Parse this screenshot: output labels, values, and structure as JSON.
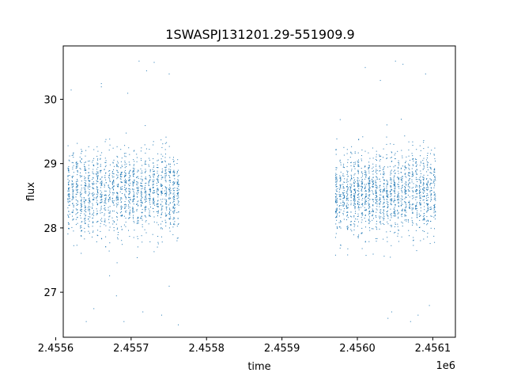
{
  "chart_data": {
    "type": "scatter",
    "title": "1SWASPJ131201.29-551909.9",
    "xlabel": "time",
    "ylabel": "flux",
    "x_offset_label": "1e6",
    "xlim": [
      2.45561,
      2.45613
    ],
    "ylim": [
      26.3,
      30.83
    ],
    "xticks": [
      2.4556,
      2.4557,
      2.4558,
      2.4559,
      2.456,
      2.4561
    ],
    "xtick_labels": [
      "2.4556",
      "2.4557",
      "2.4558",
      "2.4559",
      "2.4560",
      "2.4561"
    ],
    "yticks": [
      27,
      28,
      29,
      30
    ],
    "ytick_labels": [
      "27",
      "28",
      "29",
      "30"
    ],
    "grid": false,
    "point_color": "#1f77b4",
    "series": [
      {
        "segments": [
          {
            "x_start": 2.455615,
            "x_end": 2.455765,
            "center": 28.55,
            "spread": 0.32,
            "n": 1700
          },
          {
            "x_start": 2.45597,
            "x_end": 2.456105,
            "center": 28.55,
            "spread": 0.32,
            "n": 1700
          }
        ],
        "outliers": [
          [
            2.45562,
            30.15
          ],
          [
            2.45564,
            26.55
          ],
          [
            2.45566,
            30.2
          ],
          [
            2.45568,
            26.95
          ],
          [
            2.455695,
            30.1
          ],
          [
            2.455715,
            26.7
          ],
          [
            2.45572,
            30.45
          ],
          [
            2.45574,
            26.65
          ],
          [
            2.45575,
            30.4
          ],
          [
            2.455762,
            26.5
          ],
          [
            2.45566,
            30.25
          ],
          [
            2.45571,
            30.6
          ],
          [
            2.45573,
            30.58
          ],
          [
            2.45575,
            27.1
          ],
          [
            2.45565,
            26.75
          ],
          [
            2.45569,
            26.55
          ],
          [
            2.45601,
            30.5
          ],
          [
            2.45603,
            30.3
          ],
          [
            2.456045,
            26.7
          ],
          [
            2.45606,
            30.55
          ],
          [
            2.45607,
            26.55
          ],
          [
            2.45609,
            30.4
          ],
          [
            2.456095,
            26.8
          ],
          [
            2.45604,
            26.6
          ],
          [
            2.45605,
            30.6
          ],
          [
            2.45608,
            26.65
          ]
        ]
      }
    ]
  }
}
